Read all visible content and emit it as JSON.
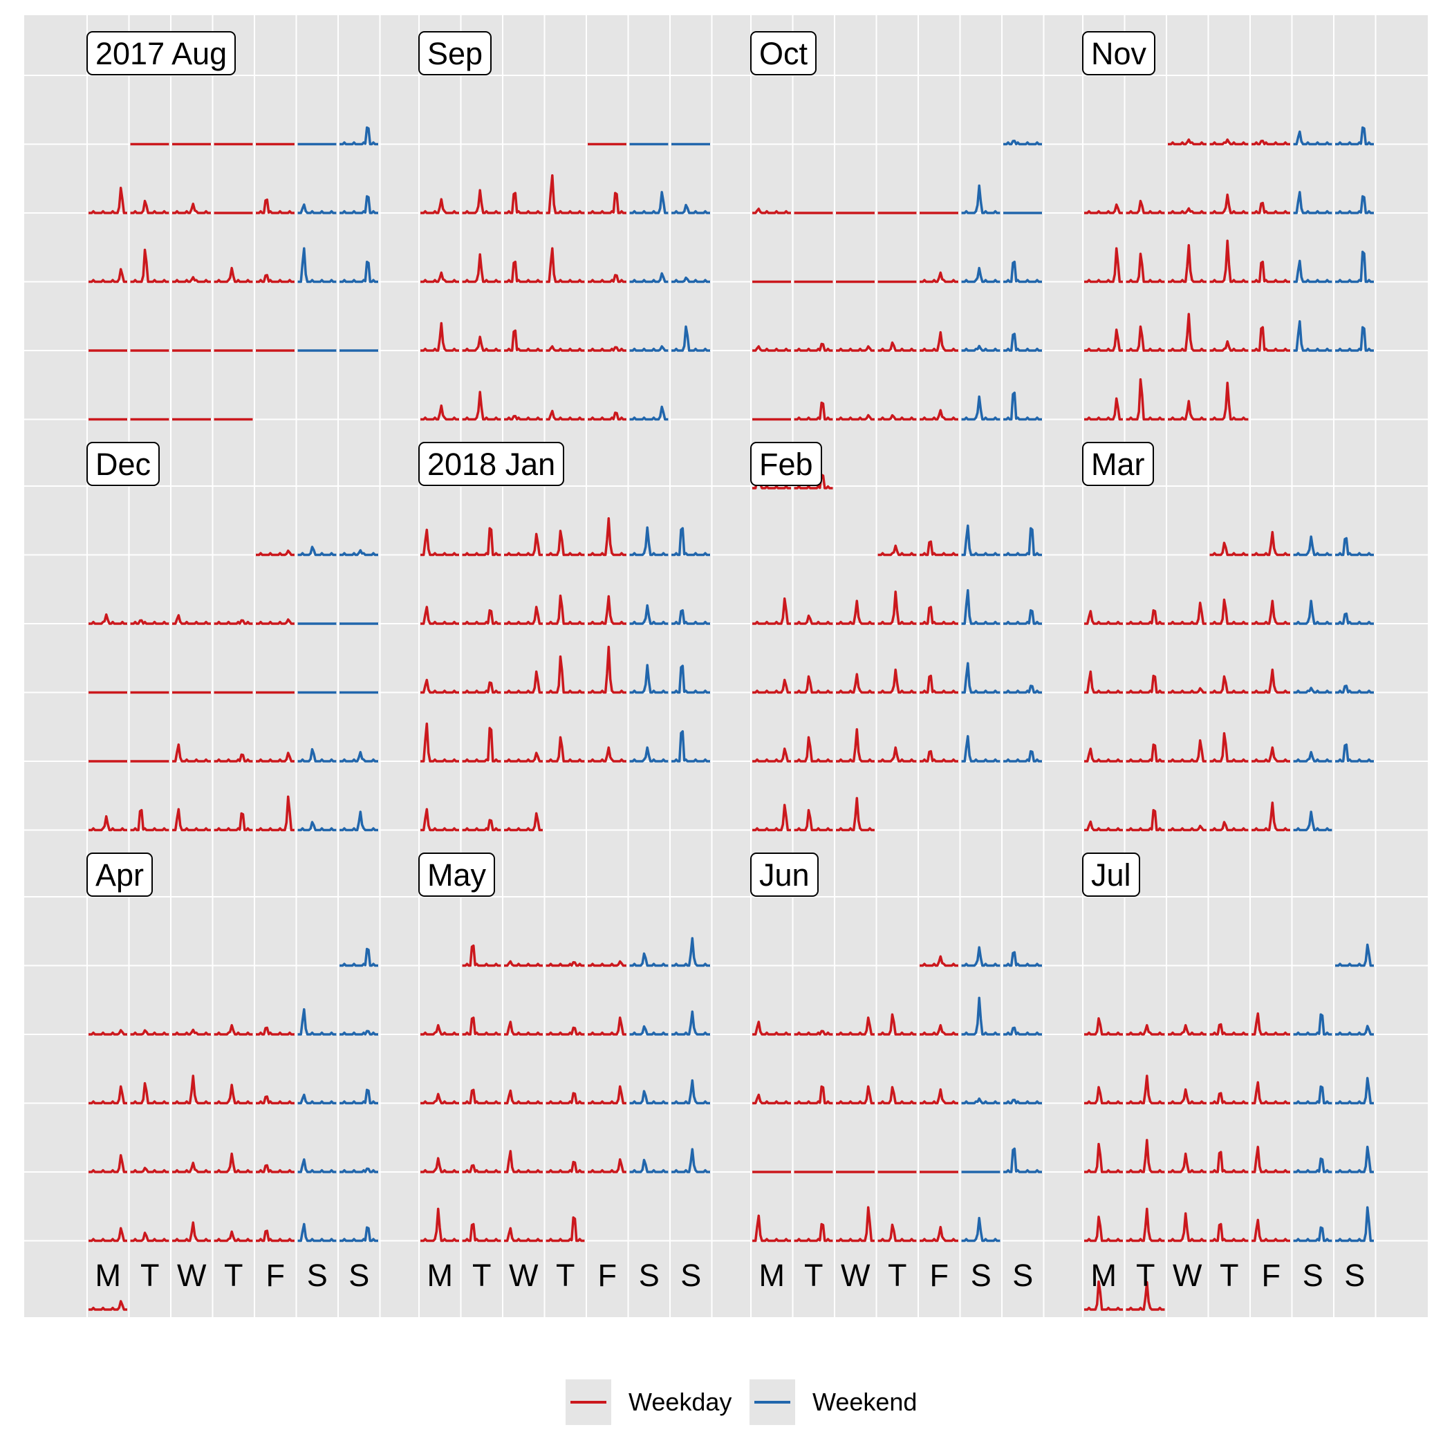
{
  "chart_data": {
    "type": "line",
    "layout": "calendar",
    "months": [
      {
        "label": "2017 Aug",
        "first_weekday": 1,
        "days": 31
      },
      {
        "label": "Sep",
        "first_weekday": 4,
        "days": 30
      },
      {
        "label": "Oct",
        "first_weekday": 6,
        "days": 31
      },
      {
        "label": "Nov",
        "first_weekday": 2,
        "days": 30
      },
      {
        "label": "Dec",
        "first_weekday": 4,
        "days": 31
      },
      {
        "label": "2018 Jan",
        "first_weekday": 0,
        "days": 31
      },
      {
        "label": "Feb",
        "first_weekday": 3,
        "days": 28
      },
      {
        "label": "Mar",
        "first_weekday": 3,
        "days": 31
      },
      {
        "label": "Apr",
        "first_weekday": 6,
        "days": 30
      },
      {
        "label": "May",
        "first_weekday": 1,
        "days": 31
      },
      {
        "label": "Jun",
        "first_weekday": 4,
        "days": 30
      },
      {
        "label": "Jul",
        "first_weekday": 6,
        "days": 31
      }
    ],
    "day_labels": [
      "M",
      "T",
      "W",
      "T",
      "F",
      "S",
      "S"
    ],
    "series": [
      {
        "name": "Weekday",
        "color": "#cb181d"
      },
      {
        "name": "Weekend",
        "color": "#2166ac"
      }
    ],
    "peaks": [
      [
        0.0,
        0.0,
        0.0,
        0.0,
        0.0,
        0.5,
        0.6,
        0.3,
        0.2,
        0.0,
        0.4,
        0.2,
        0.5,
        0.3,
        0.8,
        0.1,
        0.3,
        0.2,
        0.8,
        0.6,
        0.0,
        0.0,
        0.0,
        0.0,
        0.0,
        0.0,
        0.0,
        0.0,
        0.0,
        0.0,
        0.0
      ],
      [
        0.0,
        0.0,
        0.0,
        0.3,
        0.5,
        0.6,
        0.9,
        0.6,
        0.5,
        0.2,
        0.2,
        0.6,
        0.6,
        0.8,
        0.2,
        0.2,
        0.1,
        0.6,
        0.3,
        0.6,
        0.1,
        0.1,
        0.1,
        0.6,
        0.3,
        0.6,
        0.1,
        0.2,
        0.2,
        0.3
      ],
      [
        0.1,
        0.1,
        0.0,
        0.0,
        0.0,
        0.0,
        0.6,
        0.0,
        0.0,
        0.0,
        0.0,
        0.0,
        0.2,
        0.3,
        0.6,
        0.1,
        0.2,
        0.1,
        0.2,
        0.4,
        0.1,
        0.5,
        0.0,
        0.5,
        0.1,
        0.1,
        0.2,
        0.5,
        0.8,
        0.4,
        0.4
      ],
      [
        0.1,
        0.1,
        0.1,
        0.3,
        0.5,
        0.2,
        0.3,
        0.1,
        0.4,
        0.3,
        0.5,
        0.5,
        0.8,
        0.7,
        0.8,
        0.9,
        0.6,
        0.5,
        0.9,
        0.5,
        0.6,
        0.8,
        0.2,
        0.7,
        0.7,
        0.7,
        0.5,
        1.0,
        0.4,
        0.8
      ],
      [
        0.1,
        0.2,
        0.1,
        0.2,
        0.1,
        0.2,
        0.1,
        0.1,
        0.0,
        0.0,
        0.0,
        0.0,
        0.0,
        0.0,
        0.0,
        0.0,
        0.0,
        0.0,
        0.0,
        0.4,
        0.2,
        0.2,
        0.3,
        0.2,
        0.3,
        0.6,
        0.5,
        0.5,
        0.8,
        0.2,
        0.4
      ],
      [
        0.6,
        0.8,
        0.5,
        0.6,
        0.8,
        0.6,
        0.8,
        0.4,
        0.4,
        0.4,
        0.7,
        0.6,
        0.4,
        0.4,
        0.3,
        0.3,
        0.5,
        0.9,
        1.0,
        0.6,
        0.8,
        0.9,
        1.0,
        0.2,
        0.6,
        0.3,
        0.3,
        0.9,
        0.5,
        0.3,
        0.4
      ],
      [
        0.2,
        0.4,
        0.7,
        0.8,
        0.6,
        0.2,
        0.5,
        0.7,
        0.5,
        0.8,
        0.4,
        0.3,
        0.4,
        0.4,
        0.5,
        0.5,
        0.7,
        0.2,
        0.3,
        0.6,
        0.7,
        0.3,
        0.3,
        0.6,
        0.3,
        0.6,
        0.5,
        0.7
      ],
      [
        0.3,
        0.5,
        0.4,
        0.5,
        0.3,
        0.4,
        0.5,
        0.6,
        0.5,
        0.5,
        0.3,
        0.5,
        0.5,
        0.1,
        0.4,
        0.5,
        0.1,
        0.2,
        0.3,
        0.5,
        0.5,
        0.7,
        0.3,
        0.2,
        0.5,
        0.2,
        0.6,
        0.1,
        0.2,
        0.6,
        0.4
      ],
      [
        0.5,
        0.1,
        0.1,
        0.1,
        0.2,
        0.2,
        0.6,
        0.1,
        0.4,
        0.5,
        0.6,
        0.4,
        0.2,
        0.2,
        0.4,
        0.4,
        0.1,
        0.2,
        0.4,
        0.2,
        0.3,
        0.1,
        0.3,
        0.2,
        0.4,
        0.2,
        0.3,
        0.4,
        0.4,
        0.2
      ],
      [
        0.6,
        0.1,
        0.1,
        0.1,
        0.3,
        0.6,
        0.2,
        0.5,
        0.3,
        0.2,
        0.4,
        0.2,
        0.5,
        0.2,
        0.4,
        0.3,
        0.3,
        0.4,
        0.3,
        0.5,
        0.3,
        0.2,
        0.5,
        0.3,
        0.3,
        0.3,
        0.5,
        0.7,
        0.5,
        0.3,
        0.7
      ],
      [
        0.2,
        0.4,
        0.4,
        0.3,
        0.1,
        0.4,
        0.5,
        0.2,
        0.8,
        0.2,
        0.2,
        0.5,
        0.4,
        0.4,
        0.3,
        0.1,
        0.1,
        0.0,
        0.0,
        0.0,
        0.0,
        0.0,
        0.0,
        0.7,
        0.6,
        0.5,
        0.8,
        0.4,
        0.3,
        0.5
      ],
      [
        0.5,
        0.4,
        0.2,
        0.2,
        0.3,
        0.5,
        0.6,
        0.2,
        0.4,
        0.6,
        0.3,
        0.3,
        0.5,
        0.5,
        0.6,
        0.7,
        0.7,
        0.4,
        0.6,
        0.6,
        0.4,
        0.6,
        0.6,
        0.7,
        0.6,
        0.5,
        0.5,
        0.4,
        0.8,
        0.7,
        0.6
      ]
    ]
  },
  "legend": {
    "weekday_label": "Weekday",
    "weekend_label": "Weekend"
  },
  "colors": {
    "panel_bg": "#e5e5e5",
    "grid": "#ffffff",
    "weekday": "#cb181d",
    "weekend": "#2166ac"
  }
}
